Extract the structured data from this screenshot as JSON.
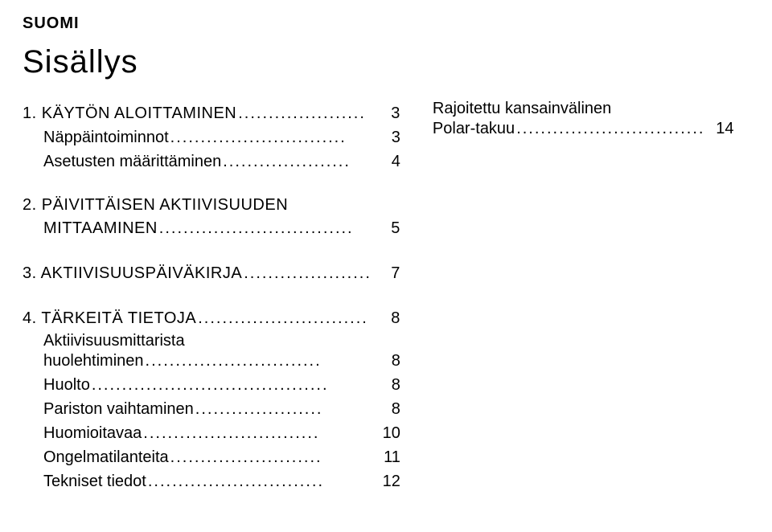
{
  "text_color": "#000000",
  "bg_color": "#ffffff",
  "lang_label": "SUOMI",
  "title": "Sisällys",
  "sections": {
    "s1": {
      "head_label": "1. KÄYTÖN ALOITTAMINEN",
      "head_page": "3",
      "items": [
        {
          "label": "Näppäintoiminnot",
          "page": "3"
        },
        {
          "label": "Asetusten määrittäminen",
          "page": "4"
        }
      ]
    },
    "s2": {
      "head_line1": "2. PÄIVITTÄISEN AKTIIVISUUDEN",
      "head_line2_label": "MITTAAMINEN",
      "head_page": "5"
    },
    "s3": {
      "head_label": "3. AKTIIVISUUSPÄIVÄKIRJA",
      "head_page": "7"
    },
    "s4": {
      "head_label": "4. TÄRKEITÄ TIETOJA",
      "head_page": "8",
      "items": [
        {
          "label_line1": "Aktiivisuusmittarista",
          "label_line2": "huolehtiminen",
          "page": "8"
        },
        {
          "label": "Huolto",
          "page": "8"
        },
        {
          "label": "Pariston vaihtaminen",
          "page": "8"
        },
        {
          "label": "Huomioitavaa",
          "page": "10"
        },
        {
          "label": "Ongelmatilanteita",
          "page": "11"
        },
        {
          "label": "Tekniset tiedot",
          "page": "12"
        }
      ]
    },
    "right": {
      "line1": "Rajoitettu kansainvälinen",
      "line2_label": "Polar-takuu",
      "line2_page": "14"
    }
  },
  "font_sizes": {
    "lang": 20,
    "title": 40,
    "body": 20
  }
}
